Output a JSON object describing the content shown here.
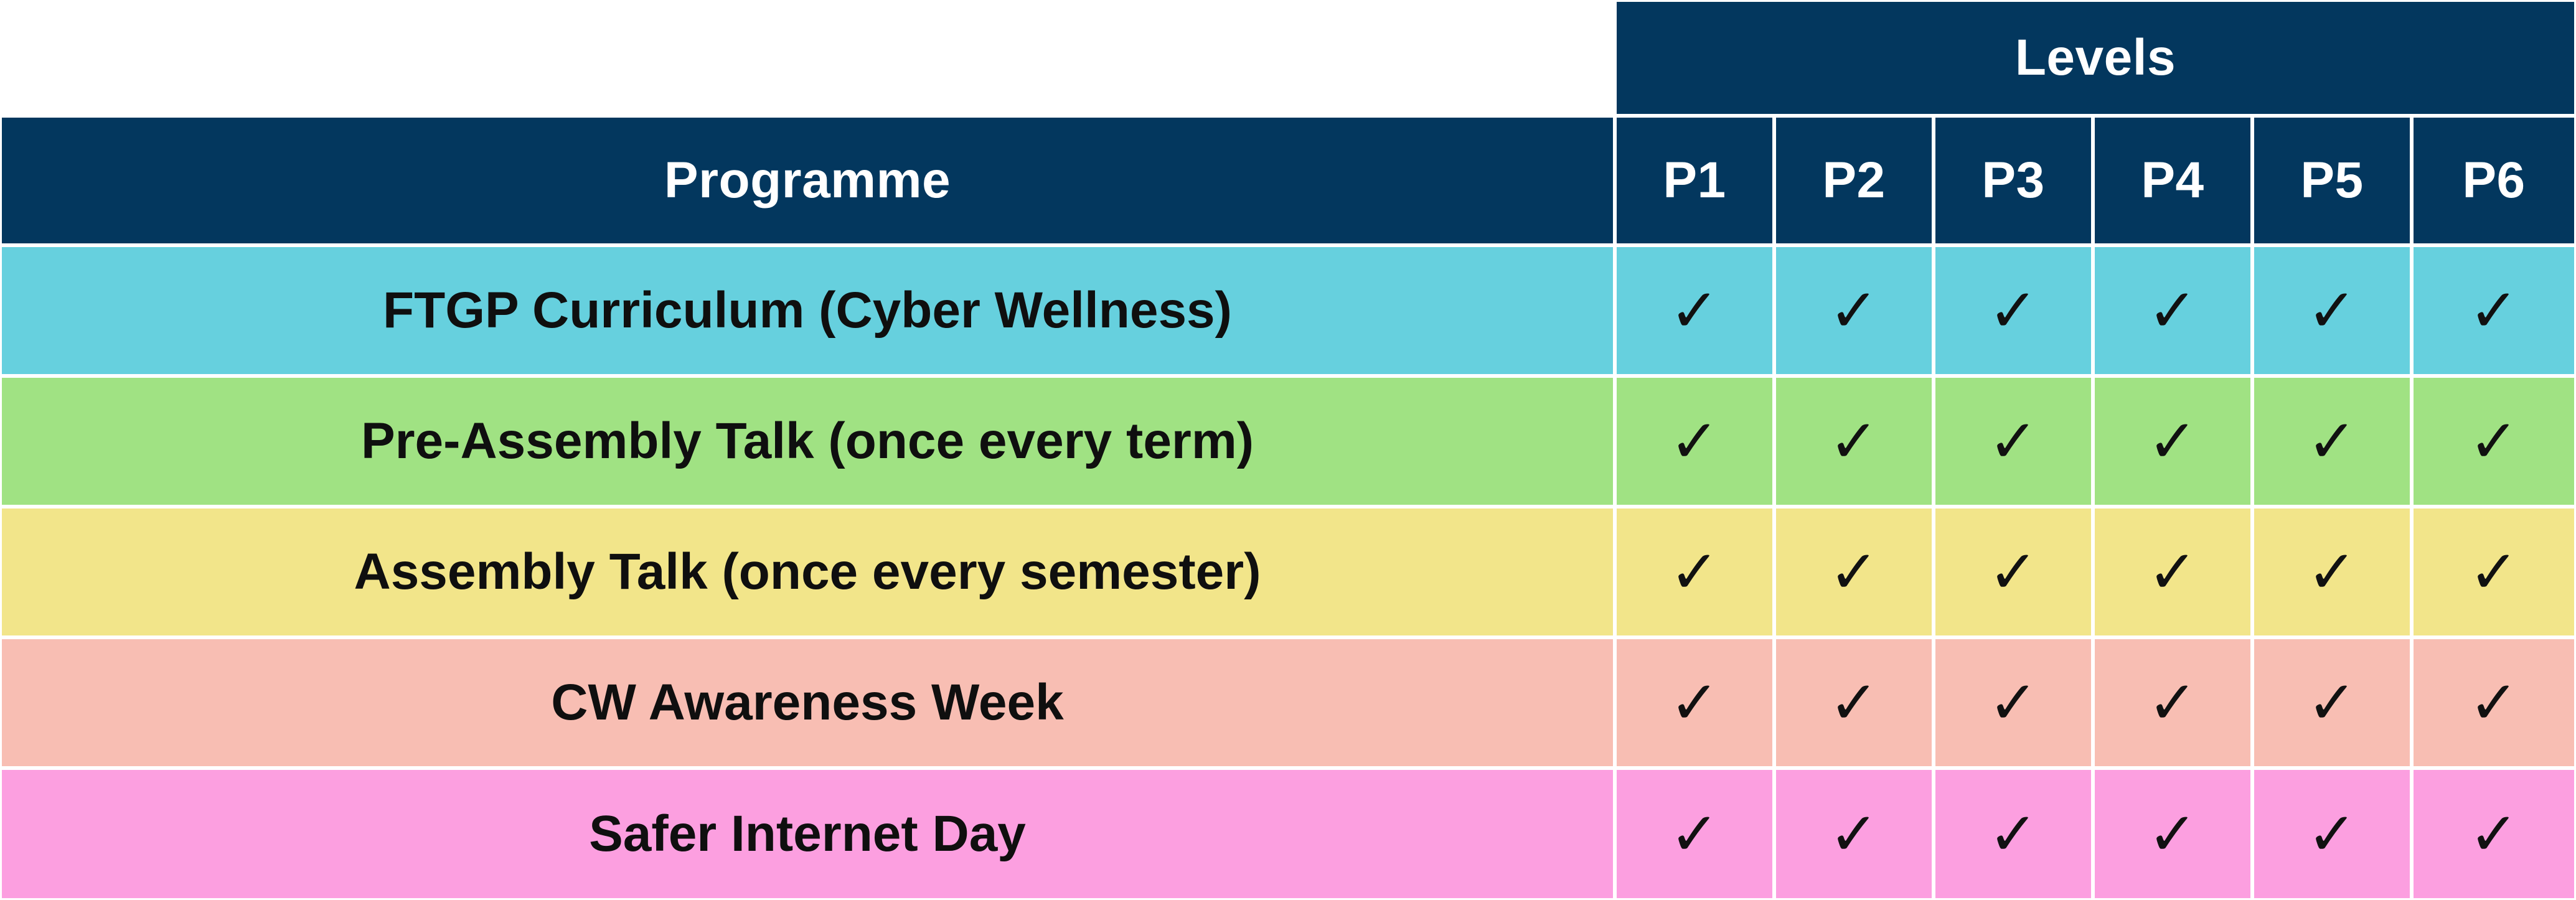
{
  "table": {
    "levels_header": "Levels",
    "programme_header": "Programme",
    "columns": [
      "P1",
      "P2",
      "P3",
      "P4",
      "P5",
      "P6"
    ],
    "check_glyph": "✓",
    "header_color": "#03375e",
    "rows": [
      {
        "name": "FTGP Curriculum (Cyber Wellness)",
        "color": "#66d0de",
        "levels": [
          true,
          true,
          true,
          true,
          true,
          true
        ]
      },
      {
        "name": "Pre-Assembly Talk (once every term)",
        "color": "#a0e283",
        "levels": [
          true,
          true,
          true,
          true,
          true,
          true
        ]
      },
      {
        "name": "Assembly Talk (once every semester)",
        "color": "#f2e58a",
        "levels": [
          true,
          true,
          true,
          true,
          true,
          true
        ]
      },
      {
        "name": "CW Awareness Week",
        "color": "#f8beb3",
        "levels": [
          true,
          true,
          true,
          true,
          true,
          true
        ]
      },
      {
        "name": "Safer Internet Day",
        "color": "#fc9fe0",
        "levels": [
          true,
          true,
          true,
          true,
          true,
          true
        ]
      }
    ]
  }
}
